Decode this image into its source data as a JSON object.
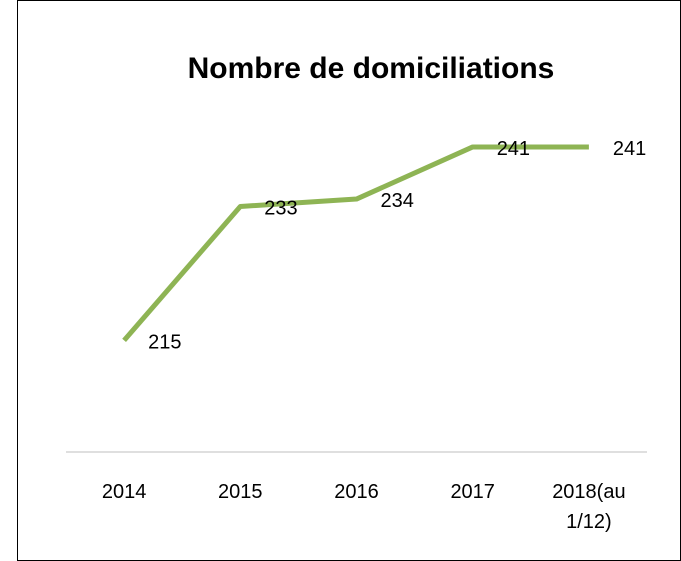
{
  "chart_data": {
    "type": "line",
    "title": "Nombre de domiciliations",
    "categories": [
      "2014",
      "2015",
      "2016",
      "2017",
      "2018(au 1/12)"
    ],
    "values": [
      215,
      233,
      234,
      241,
      241
    ],
    "color": "#8eb454",
    "ylim": [
      200,
      250
    ]
  }
}
